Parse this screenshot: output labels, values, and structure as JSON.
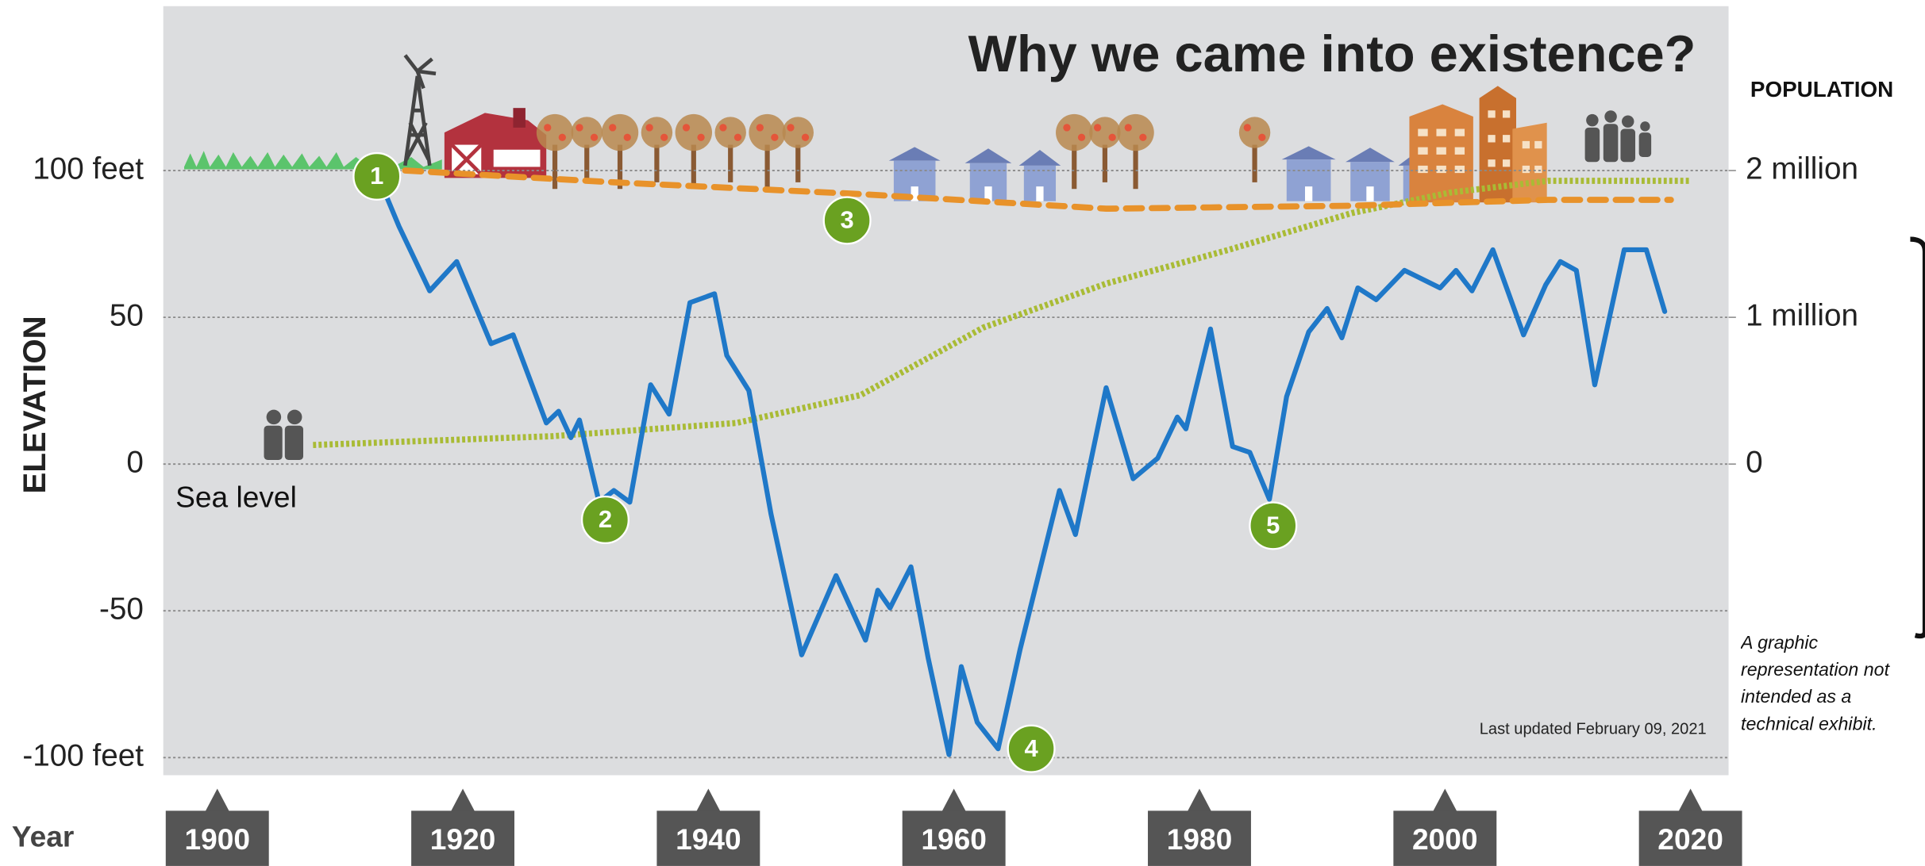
{
  "chart_data": {
    "type": "line",
    "title": "Why we came into existence?",
    "y_label": "ELEVATION",
    "y2_label": "POPULATION",
    "x_label": "Year",
    "updated": "Last updated February 09, 2021",
    "note": "A graphic representation not intended as a technical exhibit.",
    "sea_level": "Sea level",
    "xlim": [
      1895.6,
      2023.1
    ],
    "xticks": [
      1900,
      1920,
      1940,
      1960,
      1980,
      2000,
      2020
    ],
    "ylim": [
      -106,
      156
    ],
    "yticks": [
      {
        "value": 100,
        "label": "100 feet"
      },
      50,
      0,
      -50,
      {
        "value": -100,
        "label": "-100 feet"
      }
    ],
    "y2lim": [
      -2.12,
      3.12
    ],
    "y2ticks": [
      {
        "value": 2,
        "label": "2 million"
      },
      {
        "value": 1,
        "label": "1 million"
      },
      0
    ],
    "grid": true,
    "series": [
      {
        "color": "#a9bb35",
        "style": "dotted",
        "axis": "y2",
        "x": [
          1907.8,
          1927.3,
          1942.3,
          1952.4,
          1962.4,
          1972.4,
          1982.4,
          1992.4,
          2000.4,
          2008.4,
          2019.9
        ],
        "values": [
          0.13,
          0.19,
          0.28,
          0.47,
          0.93,
          1.23,
          1.46,
          1.71,
          1.85,
          1.93,
          1.93
        ]
      },
      {
        "color": "#e8922a",
        "style": "dashed",
        "x": [
          1915.3,
          1932.3,
          1952.4,
          1972.4,
          1992.4,
          2008.4,
          2018.4
        ],
        "values": [
          100,
          96,
          92,
          87,
          88,
          90,
          90
        ]
      },
      {
        "color": "#1f78c8",
        "style": "solid",
        "x": [
          1913.3,
          1914.8,
          1917.3,
          1919.5,
          1922.3,
          1924.1,
          1926.8,
          1927.8,
          1928.8,
          1929.5,
          1931.1,
          1932.3,
          1933.6,
          1935.3,
          1936.8,
          1938.5,
          1940.5,
          1941.5,
          1943.3,
          1945.1,
          1947.6,
          1950.4,
          1952.8,
          1953.8,
          1954.8,
          1956.5,
          1957.9,
          1959.6,
          1960.6,
          1961.9,
          1963.6,
          1965.4,
          1968.6,
          1969.9,
          1972.4,
          1974.6,
          1976.6,
          1978.2,
          1978.9,
          1980.9,
          1982.7,
          1984.1,
          1985.7,
          1987.1,
          1988.9,
          1990.4,
          1991.6,
          1992.9,
          1994.4,
          1996.7,
          1999.6,
          2000.9,
          2002.2,
          2003.9,
          2006.4,
          2008.2,
          2009.4,
          2010.7,
          2012.2,
          2014.6,
          2016.4,
          2017.9
        ],
        "values": [
          96,
          81,
          59,
          69,
          41,
          44,
          14,
          18,
          9,
          15,
          -13,
          -9,
          -13,
          27,
          17,
          55,
          58,
          37,
          25,
          -17,
          -65,
          -38,
          -60,
          -43,
          -49,
          -35,
          -66,
          -99,
          -69,
          -88,
          -97,
          -63,
          -9,
          -24,
          26,
          -5,
          2,
          16,
          12,
          46,
          6,
          4,
          -12,
          23,
          45,
          53,
          43,
          60,
          56,
          66,
          60,
          66,
          59,
          73,
          44,
          61,
          69,
          66,
          27,
          73,
          73,
          52
        ]
      }
    ],
    "annotations": [
      {
        "text": "1",
        "x": 1913.0,
        "y": 98
      },
      {
        "text": "2",
        "x": 1931.6,
        "y": -19
      },
      {
        "text": "3",
        "x": 1951.3,
        "y": 83
      },
      {
        "text": "4",
        "x": 1966.3,
        "y": -97
      },
      {
        "text": "5",
        "x": 1986.0,
        "y": -21
      }
    ]
  }
}
